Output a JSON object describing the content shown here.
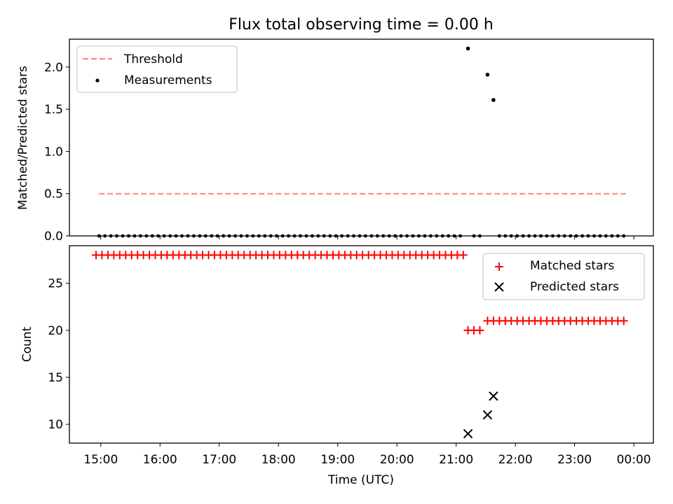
{
  "chart_data": [
    {
      "type": "scatter",
      "title": "Flux total observing time = 0.00 h",
      "xlabel": "",
      "ylabel": "Matched/Predicted stars",
      "ylim": [
        0,
        2.33
      ],
      "yticks": [
        "0.0",
        "0.5",
        "1.0",
        "1.5",
        "2.0"
      ],
      "ytick_values": [
        0,
        0.5,
        1.0,
        1.5,
        2.0
      ],
      "threshold": {
        "name": "Threshold",
        "value": 0.5,
        "x_start": 14.97,
        "x_end": 23.87,
        "color": "#ff8080"
      },
      "series": [
        {
          "name": "Measurements",
          "color": "#000000",
          "zero_runs": [
            {
              "start": 14.97,
              "end": 21.1,
              "step": 0.1
            },
            {
              "start": 21.3,
              "end": 21.47,
              "step": 0.1
            },
            {
              "start": 21.73,
              "end": 23.87,
              "step": 0.1
            }
          ],
          "points": [
            {
              "x": 21.2,
              "y": 2.22
            },
            {
              "x": 21.53,
              "y": 1.91
            },
            {
              "x": 21.63,
              "y": 1.61
            }
          ]
        }
      ],
      "legend": [
        "Threshold",
        "Measurements"
      ],
      "legend_position": "top-left"
    },
    {
      "type": "scatter",
      "xlabel": "Time (UTC)",
      "ylabel": "Count",
      "ylim": [
        8,
        29
      ],
      "yticks": [
        "10",
        "15",
        "20",
        "25"
      ],
      "ytick_values": [
        10,
        15,
        20,
        25
      ],
      "xlim": [
        14.47,
        24.33
      ],
      "xticks": [
        "15:00",
        "16:00",
        "17:00",
        "18:00",
        "19:00",
        "20:00",
        "21:00",
        "22:00",
        "23:00",
        "00:00"
      ],
      "xtick_values": [
        15,
        16,
        17,
        18,
        19,
        20,
        21,
        22,
        23,
        24
      ],
      "series": [
        {
          "name": "Matched stars",
          "marker": "plus",
          "color": "#ff0000",
          "runs": [
            {
              "start": 14.92,
              "end": 21.13,
              "step": 0.1,
              "y": 28
            },
            {
              "start": 21.2,
              "end": 21.47,
              "step": 0.1,
              "y": 20
            },
            {
              "start": 21.53,
              "end": 23.87,
              "step": 0.1,
              "y": 21
            }
          ]
        },
        {
          "name": "Predicted stars",
          "marker": "x",
          "color": "#000000",
          "points": [
            {
              "x": 21.2,
              "y": 9
            },
            {
              "x": 21.53,
              "y": 11
            },
            {
              "x": 21.63,
              "y": 13
            }
          ]
        }
      ],
      "legend": [
        "Matched stars",
        "Predicted stars"
      ],
      "legend_position": "top-right"
    }
  ]
}
